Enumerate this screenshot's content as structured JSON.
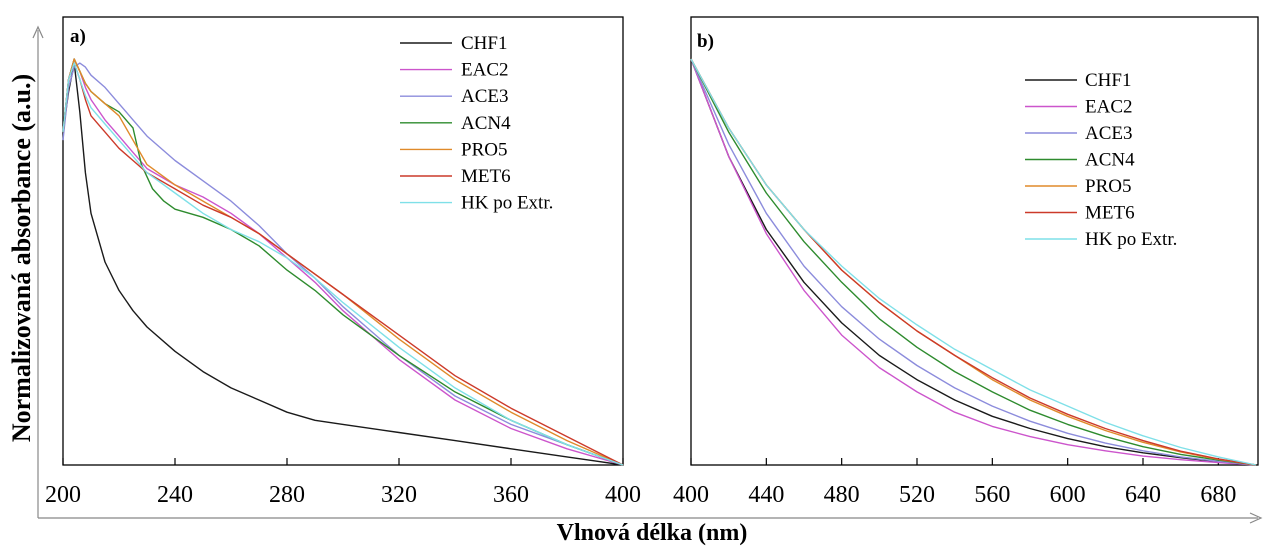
{
  "figure": {
    "ylabel": "Normalizovaná absorbance (a.u.)",
    "xlabel": "Vlnová délka (nm)"
  },
  "colors": {
    "CHF1": "#1a1a1a",
    "EAC2": "#cc55cc",
    "ACE3": "#8c8cdc",
    "ACN4": "#2e8b2e",
    "PRO5": "#e08a2a",
    "MET6": "#cc3a2a",
    "HK po Extr.": "#7fe0e8"
  },
  "chart_data": [
    {
      "type": "line",
      "panel_label": "a)",
      "xlim": [
        200,
        400
      ],
      "ylim": [
        0,
        1
      ],
      "x_ticks": [
        200,
        240,
        280,
        320,
        360,
        400
      ],
      "legend_position": "top-right",
      "grid": false,
      "series": [
        {
          "name": "CHF1",
          "x": [
            200,
            202,
            204,
            206,
            208,
            210,
            215,
            220,
            225,
            230,
            240,
            250,
            260,
            270,
            280,
            290,
            300,
            320,
            340,
            360,
            380,
            390,
            400
          ],
          "y": [
            0.82,
            0.92,
            0.99,
            0.87,
            0.72,
            0.62,
            0.5,
            0.43,
            0.38,
            0.34,
            0.28,
            0.23,
            0.19,
            0.16,
            0.13,
            0.11,
            0.1,
            0.08,
            0.06,
            0.04,
            0.02,
            0.01,
            0.0
          ]
        },
        {
          "name": "EAC2",
          "x": [
            200,
            202,
            204,
            206,
            208,
            210,
            215,
            220,
            225,
            230,
            240,
            250,
            260,
            270,
            280,
            290,
            300,
            320,
            340,
            360,
            380,
            400
          ],
          "y": [
            0.82,
            0.95,
            1.0,
            0.97,
            0.93,
            0.9,
            0.85,
            0.81,
            0.77,
            0.73,
            0.69,
            0.66,
            0.62,
            0.57,
            0.51,
            0.45,
            0.38,
            0.26,
            0.16,
            0.09,
            0.04,
            0.0
          ]
        },
        {
          "name": "ACE3",
          "x": [
            200,
            202,
            204,
            206,
            208,
            210,
            215,
            220,
            225,
            230,
            240,
            250,
            260,
            270,
            280,
            290,
            300,
            320,
            340,
            360,
            380,
            400
          ],
          "y": [
            0.8,
            0.93,
            0.98,
            0.99,
            0.98,
            0.96,
            0.93,
            0.89,
            0.85,
            0.81,
            0.75,
            0.7,
            0.65,
            0.59,
            0.52,
            0.46,
            0.39,
            0.27,
            0.17,
            0.1,
            0.05,
            0.0
          ]
        },
        {
          "name": "ACN4",
          "x": [
            200,
            202,
            204,
            206,
            208,
            210,
            215,
            220,
            225,
            228,
            232,
            236,
            240,
            250,
            260,
            270,
            280,
            290,
            300,
            320,
            340,
            360,
            380,
            400
          ],
          "y": [
            0.82,
            0.95,
            1.0,
            0.97,
            0.94,
            0.92,
            0.89,
            0.87,
            0.83,
            0.74,
            0.68,
            0.65,
            0.63,
            0.61,
            0.58,
            0.54,
            0.48,
            0.43,
            0.37,
            0.27,
            0.18,
            0.11,
            0.05,
            0.0
          ]
        },
        {
          "name": "PRO5",
          "x": [
            200,
            202,
            204,
            206,
            208,
            210,
            215,
            220,
            225,
            230,
            240,
            250,
            260,
            270,
            280,
            290,
            300,
            320,
            340,
            360,
            380,
            400
          ],
          "y": [
            0.82,
            0.95,
            1.0,
            0.97,
            0.94,
            0.92,
            0.89,
            0.86,
            0.8,
            0.74,
            0.69,
            0.65,
            0.61,
            0.57,
            0.52,
            0.47,
            0.42,
            0.31,
            0.21,
            0.13,
            0.06,
            0.0
          ]
        },
        {
          "name": "MET6",
          "x": [
            200,
            202,
            204,
            206,
            208,
            210,
            215,
            220,
            225,
            230,
            240,
            250,
            260,
            270,
            280,
            290,
            300,
            320,
            340,
            360,
            380,
            400
          ],
          "y": [
            0.82,
            0.95,
            0.99,
            0.95,
            0.9,
            0.86,
            0.82,
            0.78,
            0.75,
            0.72,
            0.68,
            0.64,
            0.61,
            0.57,
            0.52,
            0.47,
            0.42,
            0.32,
            0.22,
            0.14,
            0.07,
            0.0
          ]
        },
        {
          "name": "HK po Extr.",
          "x": [
            200,
            202,
            204,
            206,
            208,
            210,
            215,
            220,
            225,
            230,
            240,
            250,
            260,
            270,
            280,
            290,
            300,
            320,
            340,
            360,
            380,
            400
          ],
          "y": [
            0.82,
            0.95,
            0.99,
            0.95,
            0.91,
            0.88,
            0.84,
            0.8,
            0.76,
            0.72,
            0.67,
            0.62,
            0.58,
            0.55,
            0.51,
            0.46,
            0.4,
            0.29,
            0.19,
            0.11,
            0.05,
            0.0
          ]
        }
      ]
    },
    {
      "type": "line",
      "panel_label": "b)",
      "xlim": [
        400,
        700
      ],
      "ylim": [
        0,
        1
      ],
      "x_ticks": [
        400,
        440,
        480,
        520,
        560,
        600,
        640,
        680
      ],
      "legend_position": "top-right",
      "grid": false,
      "series": [
        {
          "name": "CHF1",
          "x": [
            400,
            420,
            440,
            460,
            480,
            500,
            520,
            540,
            560,
            580,
            600,
            620,
            640,
            660,
            680,
            700
          ],
          "y": [
            1.0,
            0.76,
            0.58,
            0.45,
            0.35,
            0.27,
            0.21,
            0.16,
            0.12,
            0.09,
            0.065,
            0.045,
            0.03,
            0.018,
            0.008,
            0.0
          ]
        },
        {
          "name": "EAC2",
          "x": [
            400,
            420,
            440,
            460,
            480,
            500,
            520,
            540,
            560,
            580,
            600,
            620,
            640,
            660,
            680,
            700
          ],
          "y": [
            1.0,
            0.76,
            0.57,
            0.43,
            0.32,
            0.24,
            0.18,
            0.13,
            0.095,
            0.07,
            0.05,
            0.035,
            0.022,
            0.013,
            0.006,
            0.0
          ]
        },
        {
          "name": "ACE3",
          "x": [
            400,
            420,
            440,
            460,
            480,
            500,
            520,
            540,
            560,
            580,
            600,
            620,
            640,
            660,
            680,
            700
          ],
          "y": [
            1.0,
            0.79,
            0.62,
            0.49,
            0.39,
            0.31,
            0.245,
            0.19,
            0.145,
            0.108,
            0.078,
            0.054,
            0.035,
            0.02,
            0.009,
            0.0
          ]
        },
        {
          "name": "ACN4",
          "x": [
            400,
            420,
            440,
            460,
            480,
            500,
            520,
            540,
            560,
            580,
            600,
            620,
            640,
            660,
            680,
            700
          ],
          "y": [
            1.0,
            0.82,
            0.67,
            0.55,
            0.45,
            0.36,
            0.29,
            0.23,
            0.18,
            0.135,
            0.1,
            0.07,
            0.045,
            0.026,
            0.012,
            0.0
          ]
        },
        {
          "name": "PRO5",
          "x": [
            400,
            420,
            440,
            460,
            480,
            500,
            520,
            540,
            560,
            580,
            600,
            620,
            640,
            660,
            680,
            700
          ],
          "y": [
            1.0,
            0.83,
            0.69,
            0.58,
            0.48,
            0.4,
            0.33,
            0.27,
            0.21,
            0.16,
            0.12,
            0.085,
            0.056,
            0.032,
            0.014,
            0.0
          ]
        },
        {
          "name": "MET6",
          "x": [
            400,
            420,
            440,
            460,
            480,
            500,
            520,
            540,
            560,
            580,
            600,
            620,
            640,
            660,
            680,
            700
          ],
          "y": [
            1.0,
            0.83,
            0.69,
            0.58,
            0.48,
            0.4,
            0.33,
            0.27,
            0.215,
            0.165,
            0.125,
            0.09,
            0.06,
            0.034,
            0.015,
            0.0
          ]
        },
        {
          "name": "HK po Extr.",
          "x": [
            400,
            420,
            440,
            460,
            480,
            500,
            520,
            540,
            560,
            580,
            600,
            620,
            640,
            660,
            680,
            700
          ],
          "y": [
            1.0,
            0.83,
            0.69,
            0.58,
            0.49,
            0.41,
            0.345,
            0.285,
            0.235,
            0.185,
            0.145,
            0.105,
            0.072,
            0.043,
            0.02,
            0.0
          ]
        }
      ]
    }
  ]
}
